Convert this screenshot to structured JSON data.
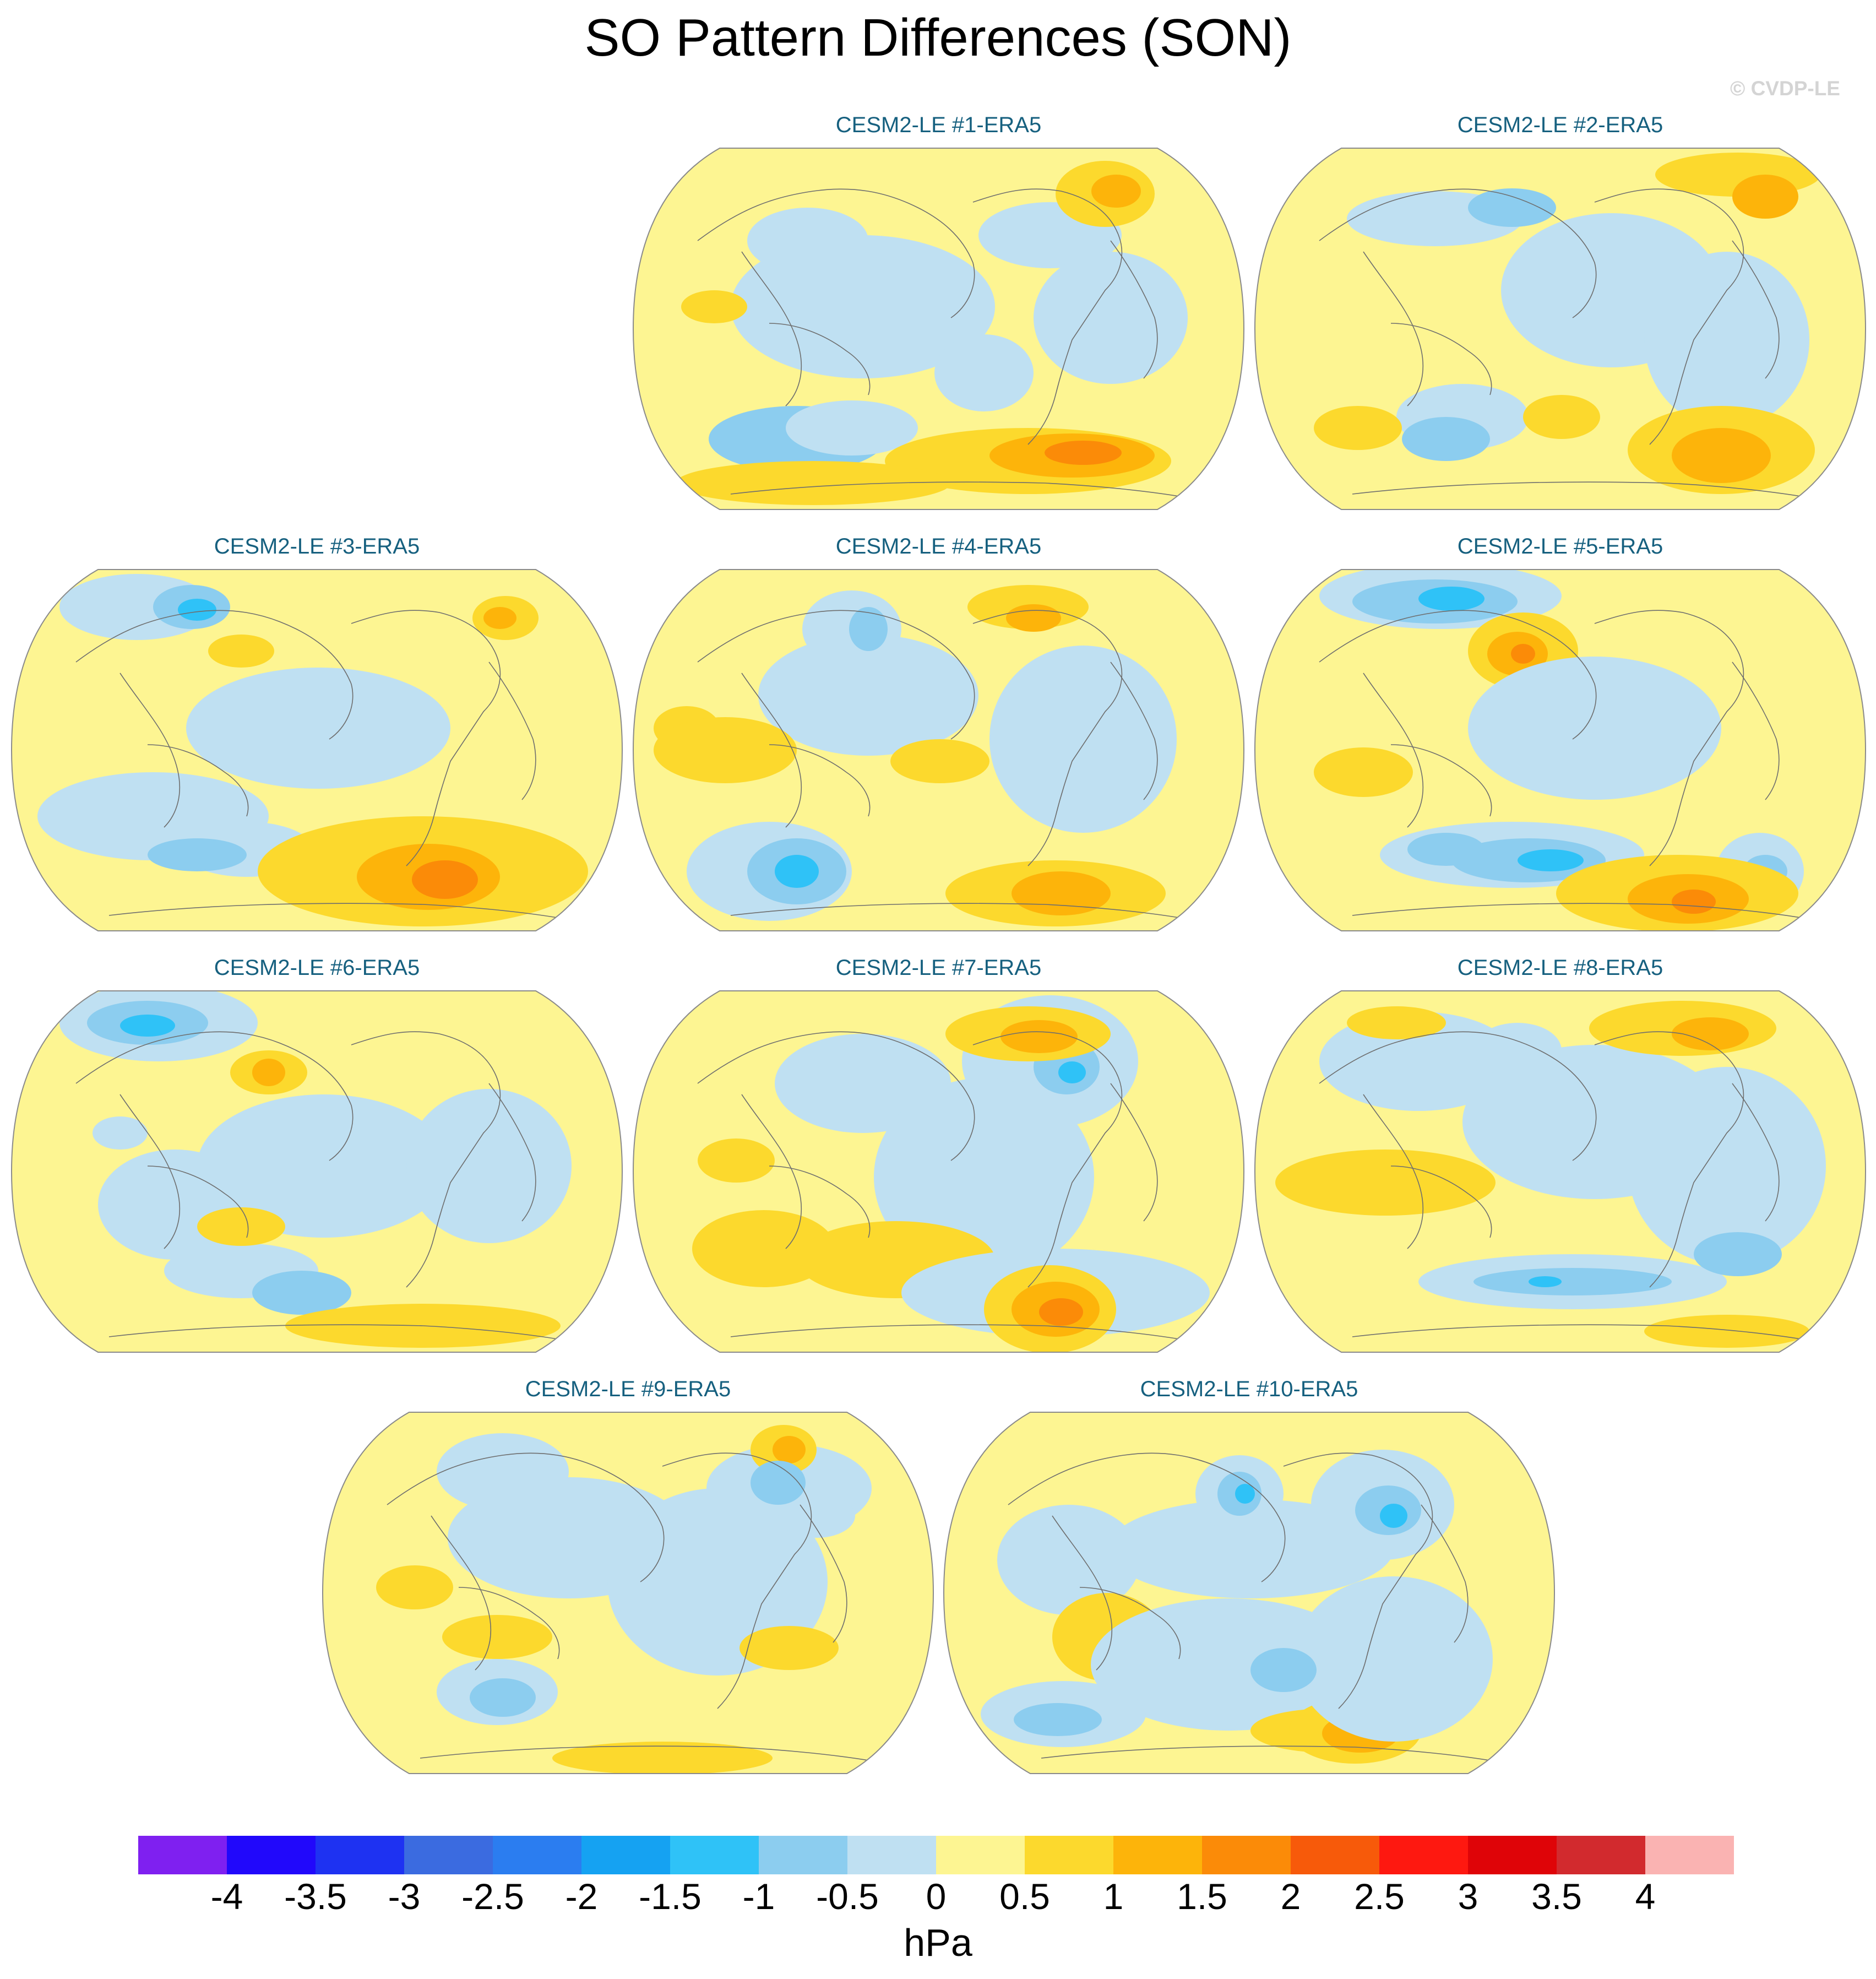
{
  "title": "SO Pattern Differences (SON)",
  "watermark": "© CVDP-LE",
  "units": "hPa",
  "colors": {
    "panel_title": "#16607f",
    "coast": "#6e6e6e",
    "levels": [
      "#7f20f0",
      "#2108fb",
      "#1e32f2",
      "#3b6be0",
      "#2b7df0",
      "#15a2f2",
      "#2fc2f7",
      "#8ccdef",
      "#bfe0f2",
      "#fdf592",
      "#fcd92d",
      "#fdb40a",
      "#fb8b08",
      "#f75a0a",
      "#fe1810",
      "#df0408",
      "#d22a2e",
      "#fab3b2"
    ]
  },
  "colorbar_labels": [
    "-4",
    "-3.5",
    "-3",
    "-2.5",
    "-2",
    "-1.5",
    "-1",
    "-0.5",
    "0",
    "0.5",
    "1",
    "1.5",
    "2",
    "2.5",
    "3",
    "3.5",
    "4"
  ],
  "panels": [
    {
      "label": "CESM2-LE #1-ERA5"
    },
    {
      "label": "CESM2-LE #2-ERA5"
    },
    {
      "label": "CESM2-LE #3-ERA5"
    },
    {
      "label": "CESM2-LE #4-ERA5"
    },
    {
      "label": "CESM2-LE #5-ERA5"
    },
    {
      "label": "CESM2-LE #6-ERA5"
    },
    {
      "label": "CESM2-LE #7-ERA5"
    },
    {
      "label": "CESM2-LE #8-ERA5"
    },
    {
      "label": "CESM2-LE #9-ERA5"
    },
    {
      "label": "CESM2-LE #10-ERA5"
    }
  ]
}
